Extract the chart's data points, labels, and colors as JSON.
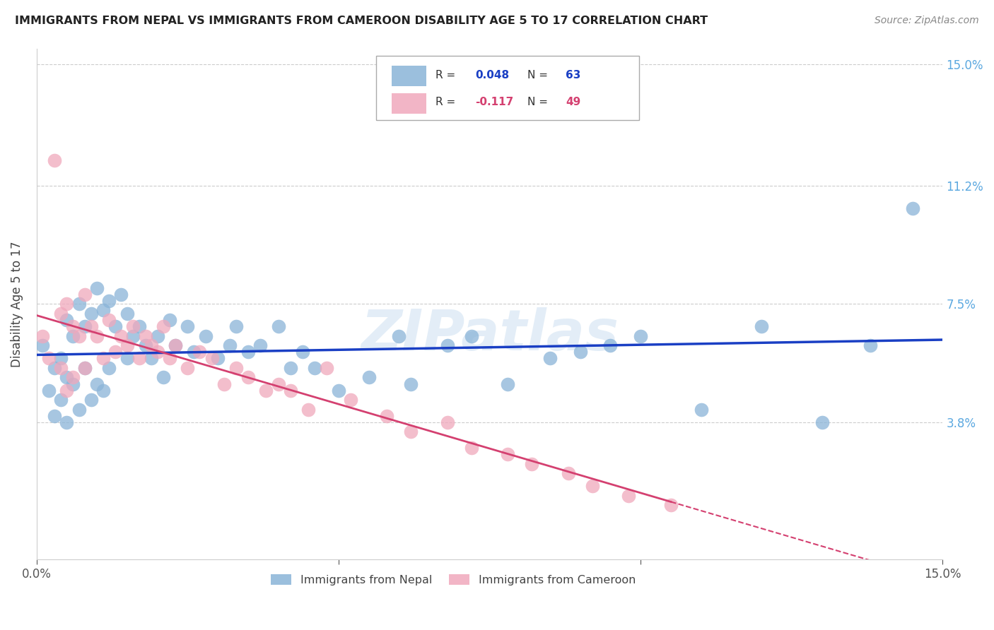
{
  "title": "IMMIGRANTS FROM NEPAL VS IMMIGRANTS FROM CAMEROON DISABILITY AGE 5 TO 17 CORRELATION CHART",
  "source": "Source: ZipAtlas.com",
  "ylabel": "Disability Age 5 to 17",
  "x_min": 0.0,
  "x_max": 0.15,
  "y_min": -0.005,
  "y_max": 0.155,
  "nepal_color": "#8ab4d8",
  "cameroon_color": "#f0a8bc",
  "nepal_label": "Immigrants from Nepal",
  "cameroon_label": "Immigrants from Cameroon",
  "nepal_R": 0.048,
  "nepal_N": 63,
  "cameroon_R": -0.117,
  "cameroon_N": 49,
  "nepal_line_color": "#1a3fc4",
  "cameroon_line_color": "#d44070",
  "watermark": "ZIPatlas",
  "background_color": "#ffffff",
  "grid_color": "#cccccc",
  "right_tick_color": "#5ba8e0",
  "y_tick_vals": [
    0.038,
    0.075,
    0.112,
    0.15
  ],
  "y_tick_labels": [
    "3.8%",
    "7.5%",
    "11.2%",
    "15.0%"
  ],
  "nepal_x": [
    0.001,
    0.002,
    0.003,
    0.003,
    0.004,
    0.004,
    0.005,
    0.005,
    0.005,
    0.006,
    0.006,
    0.007,
    0.007,
    0.008,
    0.008,
    0.009,
    0.009,
    0.01,
    0.01,
    0.011,
    0.011,
    0.012,
    0.012,
    0.013,
    0.014,
    0.015,
    0.015,
    0.016,
    0.017,
    0.018,
    0.019,
    0.02,
    0.021,
    0.022,
    0.023,
    0.025,
    0.026,
    0.028,
    0.03,
    0.032,
    0.033,
    0.035,
    0.037,
    0.04,
    0.042,
    0.044,
    0.046,
    0.05,
    0.055,
    0.06,
    0.062,
    0.068,
    0.072,
    0.078,
    0.085,
    0.09,
    0.095,
    0.1,
    0.11,
    0.12,
    0.13,
    0.138,
    0.145
  ],
  "nepal_y": [
    0.062,
    0.048,
    0.055,
    0.04,
    0.058,
    0.045,
    0.07,
    0.052,
    0.038,
    0.065,
    0.05,
    0.075,
    0.042,
    0.068,
    0.055,
    0.072,
    0.045,
    0.08,
    0.05,
    0.073,
    0.048,
    0.076,
    0.055,
    0.068,
    0.078,
    0.072,
    0.058,
    0.065,
    0.068,
    0.062,
    0.058,
    0.065,
    0.052,
    0.07,
    0.062,
    0.068,
    0.06,
    0.065,
    0.058,
    0.062,
    0.068,
    0.06,
    0.062,
    0.068,
    0.055,
    0.06,
    0.055,
    0.048,
    0.052,
    0.065,
    0.05,
    0.062,
    0.065,
    0.05,
    0.058,
    0.06,
    0.062,
    0.065,
    0.042,
    0.068,
    0.038,
    0.062,
    0.105
  ],
  "cameroon_x": [
    0.001,
    0.002,
    0.003,
    0.004,
    0.004,
    0.005,
    0.005,
    0.006,
    0.006,
    0.007,
    0.008,
    0.008,
    0.009,
    0.01,
    0.011,
    0.012,
    0.013,
    0.014,
    0.015,
    0.016,
    0.017,
    0.018,
    0.019,
    0.02,
    0.021,
    0.022,
    0.023,
    0.025,
    0.027,
    0.029,
    0.031,
    0.033,
    0.035,
    0.038,
    0.04,
    0.042,
    0.045,
    0.048,
    0.052,
    0.058,
    0.062,
    0.068,
    0.072,
    0.078,
    0.082,
    0.088,
    0.092,
    0.098,
    0.105
  ],
  "cameroon_y": [
    0.065,
    0.058,
    0.12,
    0.072,
    0.055,
    0.075,
    0.048,
    0.068,
    0.052,
    0.065,
    0.078,
    0.055,
    0.068,
    0.065,
    0.058,
    0.07,
    0.06,
    0.065,
    0.062,
    0.068,
    0.058,
    0.065,
    0.062,
    0.06,
    0.068,
    0.058,
    0.062,
    0.055,
    0.06,
    0.058,
    0.05,
    0.055,
    0.052,
    0.048,
    0.05,
    0.048,
    0.042,
    0.055,
    0.045,
    0.04,
    0.035,
    0.038,
    0.03,
    0.028,
    0.025,
    0.022,
    0.018,
    0.015,
    0.012
  ]
}
